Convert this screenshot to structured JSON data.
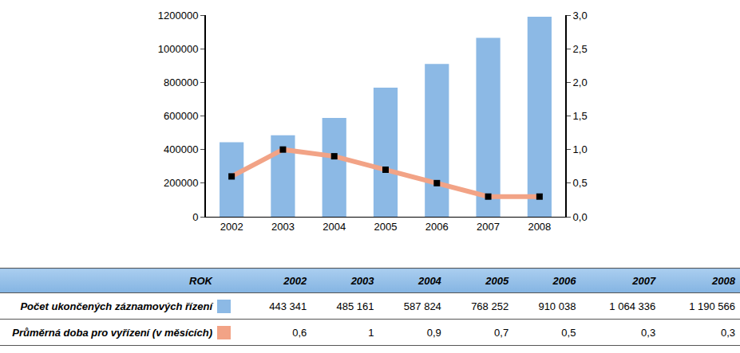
{
  "chart_data": {
    "type": "bar",
    "categories": [
      "2002",
      "2003",
      "2004",
      "2005",
      "2006",
      "2007",
      "2008"
    ],
    "series": [
      {
        "name": "Počet ukončených záznamových řízení",
        "type": "bar",
        "color": "#8cb9e5",
        "values": [
          443341,
          485161,
          587824,
          768252,
          910038,
          1064336,
          1190566
        ]
      },
      {
        "name": "Průměrná doba pro vyřízení (v měsících)",
        "type": "line",
        "axis": "y2",
        "color": "#f2a386",
        "marker": "square",
        "values": [
          0.6,
          1,
          0.9,
          0.7,
          0.5,
          0.3,
          0.3
        ]
      }
    ],
    "ylim": [
      0,
      1200000
    ],
    "yticks": [
      0,
      200000,
      400000,
      600000,
      800000,
      1000000,
      1200000
    ],
    "y2lim": [
      0,
      3
    ],
    "y2ticks": [
      {
        "value": 0,
        "label": "0,0"
      },
      {
        "value": 0.5,
        "label": "0,5"
      },
      {
        "value": 1,
        "label": "1,0"
      },
      {
        "value": 1.5,
        "label": "1,5"
      },
      {
        "value": 2,
        "label": "2,0"
      },
      {
        "value": 2.5,
        "label": "2,5"
      },
      {
        "value": 3,
        "label": "3,0"
      }
    ],
    "grid": false
  },
  "table": {
    "header": [
      "ROK",
      "2002",
      "2003",
      "2004",
      "2005",
      "2006",
      "2007",
      "2008"
    ],
    "rows": [
      {
        "label": "Počet ukončených záznamových řízení",
        "cells": [
          "443 341",
          "485 161",
          "587 824",
          "768 252",
          "910 038",
          "1 064 336",
          "1 190 566"
        ]
      },
      {
        "label": "Průměrná doba pro vyřízení (v měsících)",
        "cells": [
          "0,6",
          "1",
          "0,9",
          "0,7",
          "0,5",
          "0,3",
          "0,3"
        ]
      }
    ]
  }
}
